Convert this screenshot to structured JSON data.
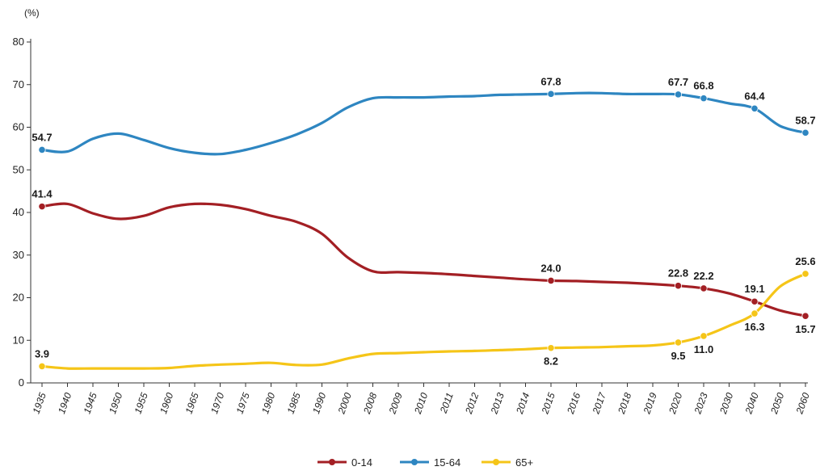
{
  "chart_data": {
    "type": "line",
    "unit_label": "(%)",
    "ylim": [
      0,
      80
    ],
    "yticks": [
      0,
      10,
      20,
      30,
      40,
      50,
      60,
      70,
      80
    ],
    "categories": [
      "1935",
      "1940",
      "1945",
      "1950",
      "1955",
      "1960",
      "1965",
      "1970",
      "1975",
      "1980",
      "1985",
      "1990",
      "2000",
      "2008",
      "2009",
      "2010",
      "2011",
      "2012",
      "2013",
      "2014",
      "2015",
      "2016",
      "2017",
      "2018",
      "2019",
      "2020",
      "2023",
      "2030",
      "2040",
      "2050",
      "2060"
    ],
    "series": [
      {
        "name": "0-14",
        "color": "#a31f24",
        "values": [
          41.4,
          42.0,
          39.8,
          38.5,
          39.2,
          41.2,
          42.0,
          41.8,
          40.8,
          39.2,
          37.8,
          35.0,
          29.5,
          26.2,
          26.0,
          25.8,
          25.5,
          25.1,
          24.7,
          24.3,
          24.0,
          23.9,
          23.7,
          23.5,
          23.2,
          22.8,
          22.2,
          21.0,
          19.1,
          17.0,
          15.7
        ]
      },
      {
        "name": "15-64",
        "color": "#2e86c1",
        "values": [
          54.7,
          54.3,
          57.3,
          58.5,
          57.0,
          55.1,
          54.0,
          53.7,
          54.7,
          56.3,
          58.3,
          61.0,
          64.6,
          66.8,
          67.0,
          67.0,
          67.2,
          67.3,
          67.6,
          67.7,
          67.8,
          68.0,
          68.0,
          67.8,
          67.8,
          67.7,
          66.8,
          65.6,
          64.4,
          60.3,
          58.7
        ]
      },
      {
        "name": "65+",
        "color": "#f5c518",
        "values": [
          3.9,
          3.4,
          3.4,
          3.4,
          3.4,
          3.5,
          4.0,
          4.3,
          4.5,
          4.7,
          4.2,
          4.3,
          5.7,
          6.8,
          7.0,
          7.2,
          7.4,
          7.5,
          7.7,
          7.9,
          8.2,
          8.3,
          8.4,
          8.6,
          8.8,
          9.5,
          11.0,
          13.4,
          16.3,
          22.6,
          25.6
        ]
      }
    ],
    "markers": [
      {
        "series": 0,
        "indices": [
          0,
          20,
          25,
          26,
          28,
          30
        ]
      },
      {
        "series": 1,
        "indices": [
          0,
          20,
          25,
          26,
          28,
          30
        ]
      },
      {
        "series": 2,
        "indices": [
          0,
          20,
          25,
          26,
          28,
          30
        ]
      }
    ],
    "data_labels": [
      {
        "text": "54.7",
        "series": 1,
        "index": 0,
        "pos": "above"
      },
      {
        "text": "67.8",
        "series": 1,
        "index": 20,
        "pos": "above"
      },
      {
        "text": "67.7",
        "series": 1,
        "index": 25,
        "pos": "above"
      },
      {
        "text": "66.8",
        "series": 1,
        "index": 26,
        "pos": "above"
      },
      {
        "text": "64.4",
        "series": 1,
        "index": 28,
        "pos": "above"
      },
      {
        "text": "58.7",
        "series": 1,
        "index": 30,
        "pos": "above"
      },
      {
        "text": "41.4",
        "series": 0,
        "index": 0,
        "pos": "above"
      },
      {
        "text": "24.0",
        "series": 0,
        "index": 20,
        "pos": "above"
      },
      {
        "text": "22.8",
        "series": 0,
        "index": 25,
        "pos": "above"
      },
      {
        "text": "22.2",
        "series": 0,
        "index": 26,
        "pos": "above"
      },
      {
        "text": "19.1",
        "series": 0,
        "index": 28,
        "pos": "above"
      },
      {
        "text": "15.7",
        "series": 0,
        "index": 30,
        "pos": "below"
      },
      {
        "text": "3.9",
        "series": 2,
        "index": 0,
        "pos": "above"
      },
      {
        "text": "8.2",
        "series": 2,
        "index": 20,
        "pos": "below"
      },
      {
        "text": "9.5",
        "series": 2,
        "index": 25,
        "pos": "below"
      },
      {
        "text": "11.0",
        "series": 2,
        "index": 26,
        "pos": "below"
      },
      {
        "text": "16.3",
        "series": 2,
        "index": 28,
        "pos": "below"
      },
      {
        "text": "25.6",
        "series": 2,
        "index": 30,
        "pos": "above"
      }
    ],
    "grid": false,
    "legend_position": "bottom-center"
  }
}
